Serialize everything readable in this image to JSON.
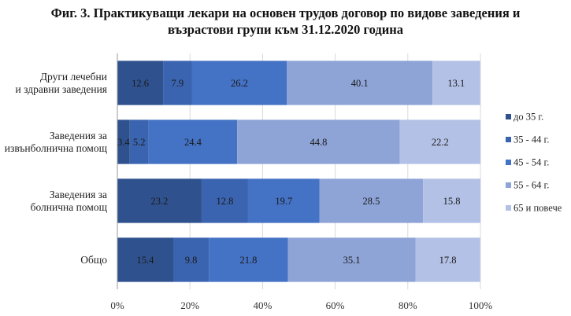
{
  "chart_data": {
    "type": "bar",
    "orientation": "horizontal",
    "stacked": "percent",
    "title_lines": [
      "Фиг. 3. Практикуващи лекари на основен трудов договор по видове заведения и",
      "възрастови групи към 31.12.2020 година"
    ],
    "categories": [
      [
        "Други лечебни",
        "и здравни заведения"
      ],
      [
        "Заведения за",
        "извънболнична помощ"
      ],
      [
        "Заведения за",
        "болнична помощ"
      ],
      [
        "Общо"
      ]
    ],
    "series": [
      {
        "name": "до 35 г.",
        "color": "#2f528f",
        "values": [
          12.6,
          3.4,
          23.2,
          15.4
        ]
      },
      {
        "name": "35 - 44 г.",
        "color": "#3b64b0",
        "values": [
          7.9,
          5.2,
          12.8,
          9.8
        ]
      },
      {
        "name": "45 - 54 г.",
        "color": "#4472c4",
        "values": [
          26.2,
          24.4,
          19.7,
          21.8
        ]
      },
      {
        "name": "55 - 64 г.",
        "color": "#8ea4d7",
        "values": [
          40.1,
          44.8,
          28.5,
          35.1
        ]
      },
      {
        "name": "65 и повече",
        "color": "#b4c1e6",
        "values": [
          13.1,
          22.2,
          15.8,
          17.8
        ]
      }
    ],
    "x_ticks": [
      "0%",
      "20%",
      "40%",
      "60%",
      "80%",
      "100%"
    ],
    "xlim": [
      0,
      100
    ],
    "grid": true,
    "legend_position": "right"
  }
}
